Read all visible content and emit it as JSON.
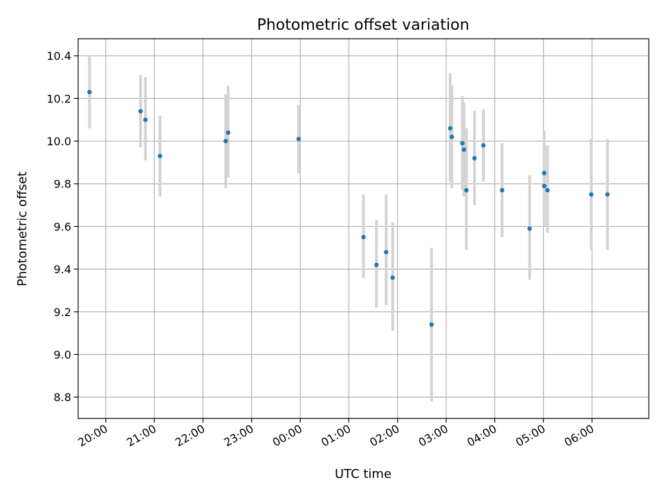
{
  "chart_data": {
    "type": "scatter",
    "title": "Photometric offset variation",
    "xlabel": "UTC time",
    "ylabel": "Photometric offset",
    "x_unit": "UTC time of night (hh:mm), spanning midnight",
    "xlim": [
      "19:26",
      "07:10"
    ],
    "ylim": [
      8.7,
      10.48
    ],
    "x_ticks": [
      "20:00",
      "21:00",
      "22:00",
      "23:00",
      "00:00",
      "01:00",
      "02:00",
      "03:00",
      "04:00",
      "05:00",
      "06:00"
    ],
    "y_ticks": [
      "8.8",
      "9.0",
      "9.2",
      "9.4",
      "9.6",
      "9.8",
      "10.0",
      "10.2",
      "10.4"
    ],
    "grid": true,
    "colors": {
      "points": "#1f77b4",
      "error_bars": "#d3d3d3",
      "grid": "#b0b0b0"
    },
    "points": [
      {
        "x": "19:40",
        "y": 10.23,
        "low": 10.06,
        "high": 10.4
      },
      {
        "x": "20:43",
        "y": 10.14,
        "low": 9.97,
        "high": 10.31
      },
      {
        "x": "20:49",
        "y": 10.1,
        "low": 9.91,
        "high": 10.3
      },
      {
        "x": "21:07",
        "y": 9.93,
        "low": 9.74,
        "high": 10.12
      },
      {
        "x": "22:28",
        "y": 10.0,
        "low": 9.78,
        "high": 10.22
      },
      {
        "x": "22:31",
        "y": 10.04,
        "low": 9.83,
        "high": 10.26
      },
      {
        "x": "23:58",
        "y": 10.01,
        "low": 9.85,
        "high": 10.17
      },
      {
        "x": "01:18",
        "y": 9.55,
        "low": 9.36,
        "high": 9.75
      },
      {
        "x": "01:34",
        "y": 9.42,
        "low": 9.22,
        "high": 9.63
      },
      {
        "x": "01:46",
        "y": 9.48,
        "low": 9.23,
        "high": 9.75
      },
      {
        "x": "01:54",
        "y": 9.36,
        "low": 9.11,
        "high": 9.62
      },
      {
        "x": "02:42",
        "y": 9.14,
        "low": 8.78,
        "high": 9.5
      },
      {
        "x": "03:05",
        "y": 10.06,
        "low": 9.81,
        "high": 10.32
      },
      {
        "x": "03:07",
        "y": 10.02,
        "low": 9.78,
        "high": 10.26
      },
      {
        "x": "03:20",
        "y": 9.99,
        "low": 9.77,
        "high": 10.21
      },
      {
        "x": "03:22",
        "y": 9.96,
        "low": 9.74,
        "high": 10.18
      },
      {
        "x": "03:25",
        "y": 9.77,
        "low": 9.49,
        "high": 10.06
      },
      {
        "x": "03:35",
        "y": 9.92,
        "low": 9.7,
        "high": 10.14
      },
      {
        "x": "03:46",
        "y": 9.98,
        "low": 9.81,
        "high": 10.15
      },
      {
        "x": "04:09",
        "y": 9.77,
        "low": 9.55,
        "high": 9.99
      },
      {
        "x": "04:43",
        "y": 9.59,
        "low": 9.35,
        "high": 9.84
      },
      {
        "x": "05:01",
        "y": 9.79,
        "low": 9.6,
        "high": 9.98
      },
      {
        "x": "05:01",
        "y": 9.85,
        "low": 9.65,
        "high": 10.05
      },
      {
        "x": "05:05",
        "y": 9.77,
        "low": 9.57,
        "high": 9.98
      },
      {
        "x": "05:59",
        "y": 9.75,
        "low": 9.49,
        "high": 10.01
      },
      {
        "x": "06:19",
        "y": 9.75,
        "low": 9.49,
        "high": 10.01
      }
    ]
  }
}
